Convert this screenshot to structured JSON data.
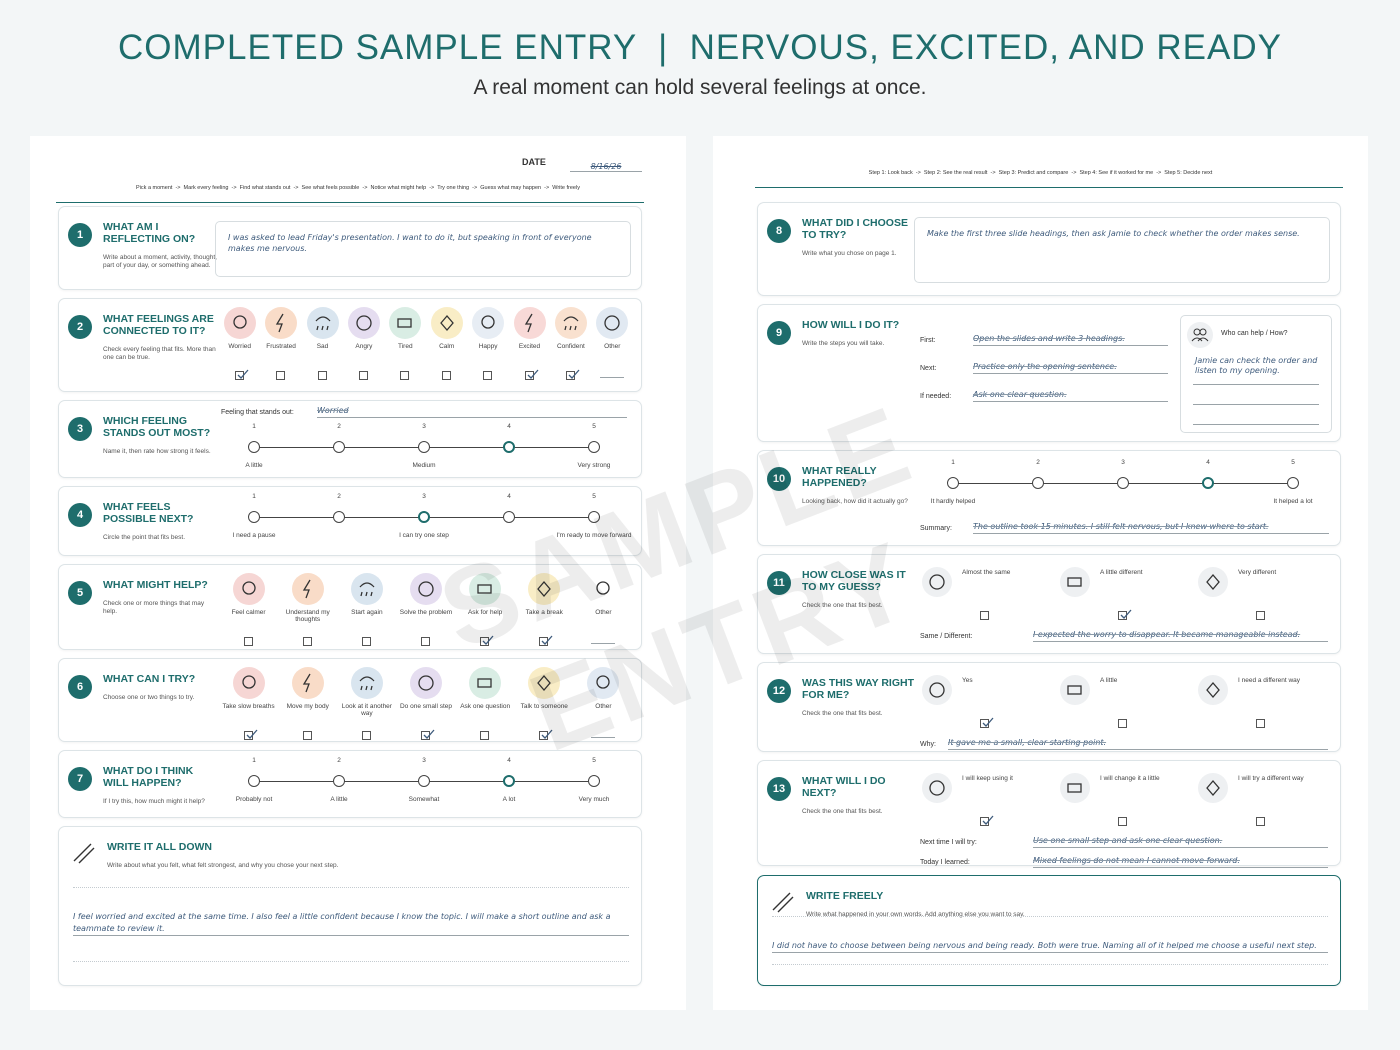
{
  "header": {
    "title": "COMPLETED SAMPLE ENTRY  |  NERVOUS, EXCITED, AND READY",
    "subtitle": "A real moment can hold several feelings at once."
  },
  "watermark": "SAMPLE ENTRY",
  "page1": {
    "date_label": "DATE",
    "date": "8/16/26",
    "steps": "Pick a moment  ->  Mark every feeling  ->  Find what stands out  ->  See what feels possible  ->  Notice what might help  ->  Try one thing  ->  Guess what may happen  ->  Write freely",
    "sections": [
      {
        "kind": "text",
        "number": 1,
        "title": "WHAT AM I REFLECTING ON?",
        "hint": "Write about a moment, activity, thought, part of your day, or something ahead.",
        "answer": "I was asked to lead Friday's presentation. I want to do it, but speaking in front of everyone makes me nervous."
      },
      {
        "kind": "options",
        "number": 2,
        "title": "WHAT FEELINGS ARE CONNECTED TO IT?",
        "hint": "Check every feeling that fits. More than one can be true.",
        "options": [
          {
            "label": "Worried",
            "color": "#f6d6d4",
            "checked": true
          },
          {
            "label": "Frustrated",
            "color": "#f9dcc8",
            "checked": false
          },
          {
            "label": "Sad",
            "color": "#d9e5ef",
            "checked": false
          },
          {
            "label": "Angry",
            "color": "#e5ddf0",
            "checked": false
          },
          {
            "label": "Tired",
            "color": "#d9ede4",
            "checked": false
          },
          {
            "label": "Calm",
            "color": "#f9edc6",
            "checked": false
          },
          {
            "label": "Happy",
            "color": "#e7edf4",
            "checked": false
          },
          {
            "label": "Excited",
            "color": "#f8d9d7",
            "checked": true
          },
          {
            "label": "Confident",
            "color": "#f9e1cf",
            "checked": true
          },
          {
            "label": "Other",
            "color": "#e1e9f2",
            "write_in": true
          }
        ]
      },
      {
        "kind": "scale",
        "number": 3,
        "title": "WHICH FEELING STANDS OUT MOST?",
        "hint": "Name it, then rate how strong it feels.",
        "fields": [
          {
            "label": "Feeling that stands out:",
            "value": "Worried"
          }
        ],
        "scale": [
          1,
          2,
          3,
          4,
          5
        ],
        "selected": 4,
        "anchors": [
          "A little",
          null,
          "Medium",
          null,
          "Very strong"
        ]
      },
      {
        "kind": "scale",
        "number": 4,
        "title": "WHAT FEELS POSSIBLE NEXT?",
        "hint": "Circle the point that fits best.",
        "scale": [
          1,
          2,
          3,
          4,
          5
        ],
        "selected": 3,
        "anchors": [
          "I need a pause",
          null,
          "I can try one step",
          null,
          "I'm ready to move forward"
        ]
      },
      {
        "kind": "options",
        "number": 5,
        "title": "WHAT MIGHT HELP?",
        "hint": "Check one or more things that may help.",
        "options": [
          {
            "label": "Feel calmer",
            "color": "#f6d6d4",
            "checked": false
          },
          {
            "label": "Understand my thoughts",
            "color": "#f9dcc8",
            "checked": false
          },
          {
            "label": "Start again",
            "color": "#d9e5ef",
            "checked": false
          },
          {
            "label": "Solve the problem",
            "color": "#e5ddf0",
            "checked": false
          },
          {
            "label": "Ask for help",
            "color": "#d9ede4",
            "checked": true
          },
          {
            "label": "Take a break",
            "color": "#f9edc6",
            "checked": true
          },
          {
            "label": "Other",
            "color": "#ffffff",
            "write_in": true
          }
        ]
      },
      {
        "kind": "options",
        "number": 6,
        "title": "WHAT CAN I TRY?",
        "hint": "Choose one or two things to try.",
        "options": [
          {
            "label": "Take slow breaths",
            "color": "#f6d6d4",
            "checked": true
          },
          {
            "label": "Move my body",
            "color": "#f9dcc8",
            "checked": false
          },
          {
            "label": "Look at it another way",
            "color": "#d9e5ef",
            "checked": false
          },
          {
            "label": "Do one small step",
            "color": "#e5ddf0",
            "checked": true
          },
          {
            "label": "Ask one question",
            "color": "#d9ede4",
            "checked": false
          },
          {
            "label": "Talk to someone",
            "color": "#f9edc6",
            "checked": true
          },
          {
            "label": "Other",
            "color": "#e1e9f2",
            "write_in": true
          }
        ]
      },
      {
        "kind": "scale",
        "number": 7,
        "title": "WHAT DO I THINK WILL HAPPEN?",
        "hint": "If I try this, how much might it help?",
        "scale": [
          1,
          2,
          3,
          4,
          5
        ],
        "selected": 4,
        "anchors": [
          "Probably not",
          "A little",
          "Somewhat",
          "A lot",
          "Very much"
        ]
      },
      {
        "kind": "write",
        "title": "WRITE IT ALL DOWN",
        "hint": "Write about what you felt, what felt strongest, and why you chose your next step.",
        "answer": "I feel worried and excited at the same time. I also feel a little confident because I know the topic. I will make a short outline and ask a teammate to review it."
      }
    ]
  },
  "page2": {
    "steps": "Step 1: Look back  ->  Step 2: See the real result  ->  Step 3: Predict and compare  ->  Step 4: See if it worked for me  ->  Step 5: Decide next",
    "sections": [
      {
        "kind": "text",
        "number": 8,
        "title": "WHAT DID I CHOOSE TO TRY?",
        "hint": "Write what you chose on page 1.",
        "answer": "Make the first three slide headings, then ask Jamie to check whether the order makes sense."
      },
      {
        "kind": "steps",
        "number": 9,
        "title": "HOW WILL I DO IT?",
        "hint": "Write the steps you will take.",
        "fields": [
          {
            "label": "First:",
            "value": "Open the slides and write 3 headings."
          },
          {
            "label": "Next:",
            "value": "Practice only the opening sentence."
          },
          {
            "label": "If needed:",
            "value": "Ask one clear question."
          }
        ],
        "helper_title": "Who can help / How?",
        "helper": "Jamie can check the order and listen to my opening."
      },
      {
        "kind": "scale",
        "number": 10,
        "title": "WHAT REALLY HAPPENED?",
        "hint": "Looking back, how did it actually go?",
        "scale": [
          1,
          2,
          3,
          4,
          5
        ],
        "selected": 4,
        "anchors": [
          "It hardly helped",
          null,
          null,
          null,
          "It helped a lot"
        ],
        "fields": [
          {
            "label": "Summary:",
            "value": "The outline took 15 minutes. I still felt nervous, but I knew where to start."
          }
        ]
      },
      {
        "kind": "compare",
        "number": 11,
        "title": "HOW CLOSE WAS IT TO MY GUESS?",
        "hint": "Check the one that fits best.",
        "options": [
          {
            "label": "Almost the same",
            "checked": false
          },
          {
            "label": "A little different",
            "checked": true
          },
          {
            "label": "Very different",
            "checked": false
          }
        ],
        "fields": [
          {
            "label": "Same / Different:",
            "value": "I expected the worry to disappear. It became manageable instead."
          }
        ]
      },
      {
        "kind": "compare",
        "number": 12,
        "title": "WAS THIS WAY RIGHT FOR ME?",
        "hint": "Check the one that fits best.",
        "options": [
          {
            "label": "Yes",
            "checked": true
          },
          {
            "label": "A little",
            "checked": false
          },
          {
            "label": "I need a different way",
            "checked": false
          }
        ],
        "fields": [
          {
            "label": "Why:",
            "value": "It gave me a small, clear starting point."
          }
        ]
      },
      {
        "kind": "compare",
        "number": 13,
        "title": "WHAT WILL I DO NEXT?",
        "hint": "Check the one that fits best.",
        "options": [
          {
            "label": "I will keep using it",
            "checked": true
          },
          {
            "label": "I will change it a little",
            "checked": false
          },
          {
            "label": "I will try a different way",
            "checked": false
          }
        ],
        "fields": [
          {
            "label": "Next time I will try:",
            "value": "Use one small step and ask one clear question."
          },
          {
            "label": "Today I learned:",
            "value": "Mixed feelings do not mean I cannot move forward."
          }
        ]
      },
      {
        "kind": "write",
        "title": "WRITE FREELY",
        "hint": "Write what happened in your own words. Add anything else you want to say.",
        "answer": "I did not have to choose between being nervous and being ready. Both were true. Naming all of it helped me choose a useful next step."
      }
    ]
  }
}
